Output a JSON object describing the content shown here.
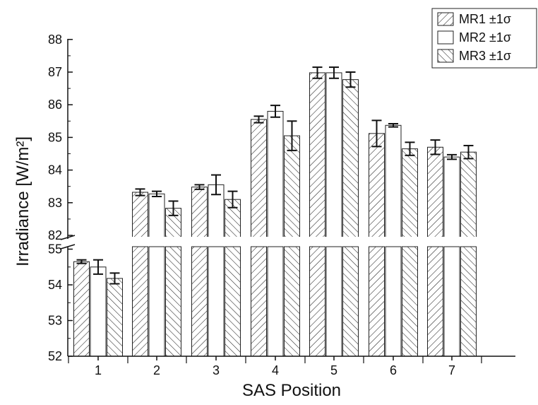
{
  "chart_data": {
    "type": "bar",
    "title": "",
    "xlabel": "SAS Position",
    "ylabel": "Irradiance [W/m²]",
    "categories": [
      "1",
      "2",
      "3",
      "4",
      "5",
      "6",
      "7"
    ],
    "series": [
      {
        "name": "MR1 ±1σ",
        "pattern": "forward-hatch",
        "values": [
          54.65,
          83.32,
          83.48,
          85.55,
          86.98,
          85.12,
          84.7
        ],
        "errors": [
          0.05,
          0.1,
          0.07,
          0.1,
          0.17,
          0.4,
          0.22
        ]
      },
      {
        "name": "MR2 ±1σ",
        "pattern": "none",
        "values": [
          54.5,
          83.27,
          83.55,
          85.8,
          86.98,
          85.37,
          84.4
        ],
        "errors": [
          0.2,
          0.08,
          0.3,
          0.18,
          0.17,
          0.05,
          0.07
        ]
      },
      {
        "name": "MR3 ±1σ",
        "pattern": "back-hatch",
        "values": [
          54.18,
          82.83,
          83.1,
          85.05,
          86.77,
          84.65,
          84.55
        ],
        "errors": [
          0.15,
          0.22,
          0.25,
          0.45,
          0.23,
          0.2,
          0.2
        ]
      }
    ],
    "y_axis": {
      "break": true,
      "lower_segment": {
        "range": [
          52,
          55.5
        ],
        "ticks": [
          "52",
          "53",
          "54",
          "55"
        ]
      },
      "upper_segment": {
        "range": [
          82,
          88
        ],
        "ticks": [
          "82",
          "83",
          "84",
          "85",
          "86",
          "87",
          "88"
        ]
      }
    },
    "legend_position": "top-right",
    "grid": false
  }
}
